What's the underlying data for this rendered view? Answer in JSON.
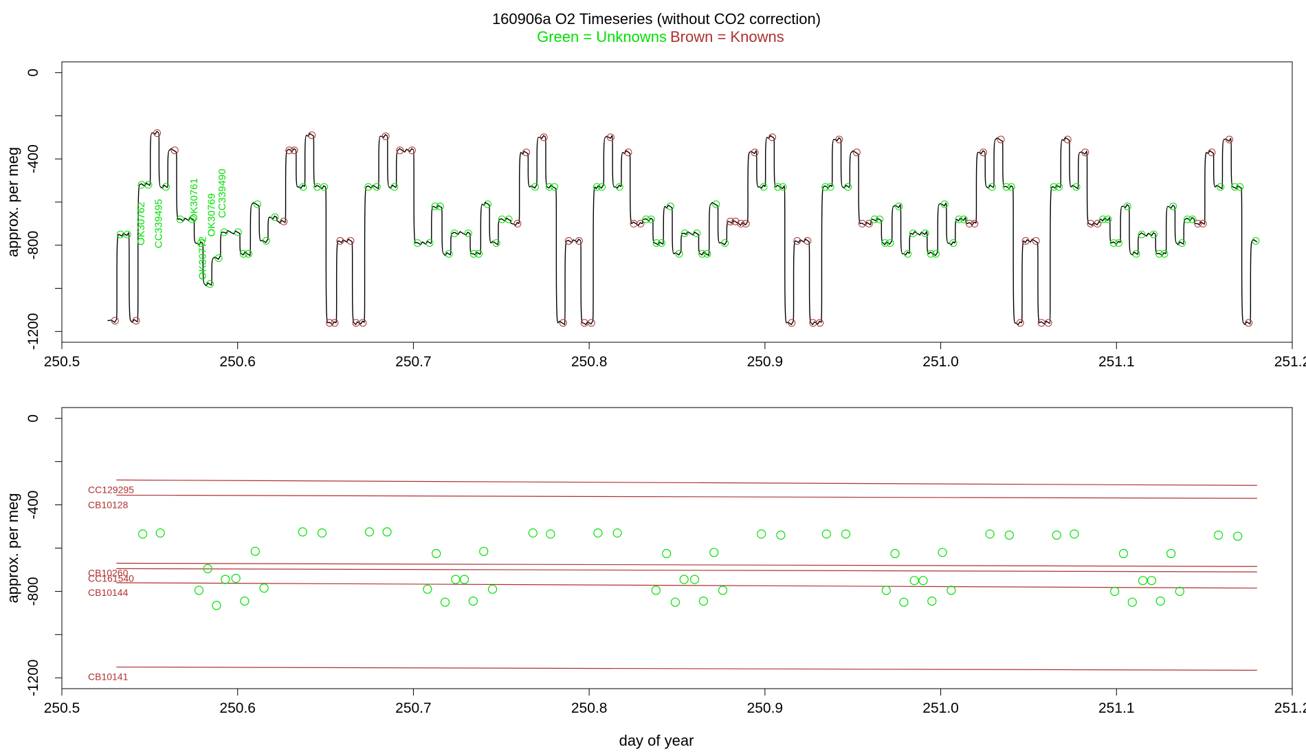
{
  "title": {
    "main": "160906a   O2 Timeseries (without CO2 correction)",
    "legend_unknowns": "Green = Unknowns",
    "legend_knowns": "Brown = Knowns"
  },
  "colors": {
    "unknown": "#00e000",
    "known": "#b03030",
    "trace": "#000000",
    "axis": "#000000"
  },
  "chart_data": [
    {
      "type": "line",
      "panel": "top",
      "ylabel": "approx. per meg",
      "xlim": [
        250.5,
        251.2
      ],
      "ylim": [
        -1250,
        50
      ],
      "x_ticks": [
        "250.5",
        "250.6",
        "250.7",
        "250.8",
        "250.9",
        "251.0",
        "251.1",
        "251.2"
      ],
      "y_ticks": [
        0,
        -400,
        -800,
        -1200
      ],
      "y_tick_labels": [
        "0",
        "-400",
        "-800",
        "-1200"
      ],
      "grid": false,
      "series": [
        {
          "role": "trace",
          "step_levels": [
            {
              "x0": 250.526,
              "x1": 250.531,
              "y": -1150
            },
            {
              "x0": 250.531,
              "x1": 250.538,
              "y": -750
            },
            {
              "x0": 250.538,
              "x1": 250.543,
              "y": -1150
            },
            {
              "x0": 250.543,
              "x1": 250.55,
              "y": -520
            },
            {
              "x0": 250.55,
              "x1": 250.555,
              "y": -280
            },
            {
              "x0": 250.555,
              "x1": 250.56,
              "y": -530
            },
            {
              "x0": 250.56,
              "x1": 250.565,
              "y": -360
            },
            {
              "x0": 250.565,
              "x1": 250.575,
              "y": -680
            },
            {
              "x0": 250.575,
              "x1": 250.58,
              "y": -790
            },
            {
              "x0": 250.58,
              "x1": 250.585,
              "y": -980
            },
            {
              "x0": 250.585,
              "x1": 250.59,
              "y": -860
            },
            {
              "x0": 250.59,
              "x1": 250.601,
              "y": -740
            },
            {
              "x0": 250.601,
              "x1": 250.607,
              "y": -840
            },
            {
              "x0": 250.607,
              "x1": 250.612,
              "y": -610
            },
            {
              "x0": 250.612,
              "x1": 250.617,
              "y": -780
            },
            {
              "x0": 250.617,
              "x1": 250.622,
              "y": -670
            },
            {
              "x0": 250.622,
              "x1": 250.627,
              "y": -690
            },
            {
              "x0": 250.627,
              "x1": 250.633,
              "y": -360
            },
            {
              "x0": 250.633,
              "x1": 250.638,
              "y": -530
            },
            {
              "x0": 250.638,
              "x1": 250.643,
              "y": -290
            },
            {
              "x0": 250.643,
              "x1": 250.65,
              "y": -530
            },
            {
              "x0": 250.65,
              "x1": 250.656,
              "y": -1160
            },
            {
              "x0": 250.656,
              "x1": 250.665,
              "y": -780
            },
            {
              "x0": 250.665,
              "x1": 250.672,
              "y": -1160
            },
            {
              "x0": 250.672,
              "x1": 250.68,
              "y": -530
            },
            {
              "x0": 250.68,
              "x1": 250.685,
              "y": -295
            },
            {
              "x0": 250.685,
              "x1": 250.69,
              "y": -530
            },
            {
              "x0": 250.69,
              "x1": 250.7,
              "y": -360
            },
            {
              "x0": 250.7,
              "x1": 250.71,
              "y": -790
            },
            {
              "x0": 250.71,
              "x1": 250.716,
              "y": -620
            },
            {
              "x0": 250.716,
              "x1": 250.721,
              "y": -840
            },
            {
              "x0": 250.721,
              "x1": 250.732,
              "y": -745
            },
            {
              "x0": 250.732,
              "x1": 250.738,
              "y": -840
            },
            {
              "x0": 250.738,
              "x1": 250.743,
              "y": -610
            },
            {
              "x0": 250.743,
              "x1": 250.748,
              "y": -790
            },
            {
              "x0": 250.748,
              "x1": 250.755,
              "y": -680
            },
            {
              "x0": 250.755,
              "x1": 250.76,
              "y": -700
            },
            {
              "x0": 250.76,
              "x1": 250.765,
              "y": -370
            },
            {
              "x0": 250.765,
              "x1": 250.77,
              "y": -530
            },
            {
              "x0": 250.77,
              "x1": 250.775,
              "y": -300
            },
            {
              "x0": 250.775,
              "x1": 250.781,
              "y": -530
            },
            {
              "x0": 250.781,
              "x1": 250.786,
              "y": -1160
            },
            {
              "x0": 250.786,
              "x1": 250.795,
              "y": -780
            },
            {
              "x0": 250.795,
              "x1": 250.802,
              "y": -1160
            },
            {
              "x0": 250.802,
              "x1": 250.808,
              "y": -530
            },
            {
              "x0": 250.808,
              "x1": 250.813,
              "y": -300
            },
            {
              "x0": 250.813,
              "x1": 250.818,
              "y": -530
            },
            {
              "x0": 250.818,
              "x1": 250.823,
              "y": -370
            },
            {
              "x0": 250.823,
              "x1": 250.83,
              "y": -700
            },
            {
              "x0": 250.83,
              "x1": 250.836,
              "y": -680
            },
            {
              "x0": 250.836,
              "x1": 250.842,
              "y": -790
            },
            {
              "x0": 250.842,
              "x1": 250.847,
              "y": -620
            },
            {
              "x0": 250.847,
              "x1": 250.852,
              "y": -840
            },
            {
              "x0": 250.852,
              "x1": 250.862,
              "y": -745
            },
            {
              "x0": 250.862,
              "x1": 250.868,
              "y": -840
            },
            {
              "x0": 250.868,
              "x1": 250.873,
              "y": -610
            },
            {
              "x0": 250.873,
              "x1": 250.878,
              "y": -790
            },
            {
              "x0": 250.878,
              "x1": 250.884,
              "y": -690
            },
            {
              "x0": 250.884,
              "x1": 250.89,
              "y": -700
            },
            {
              "x0": 250.89,
              "x1": 250.895,
              "y": -370
            },
            {
              "x0": 250.895,
              "x1": 250.9,
              "y": -530
            },
            {
              "x0": 250.9,
              "x1": 250.905,
              "y": -300
            },
            {
              "x0": 250.905,
              "x1": 250.911,
              "y": -530
            },
            {
              "x0": 250.911,
              "x1": 250.916,
              "y": -1160
            },
            {
              "x0": 250.916,
              "x1": 250.925,
              "y": -780
            },
            {
              "x0": 250.925,
              "x1": 250.932,
              "y": -1160
            },
            {
              "x0": 250.932,
              "x1": 250.938,
              "y": -530
            },
            {
              "x0": 250.938,
              "x1": 250.943,
              "y": -310
            },
            {
              "x0": 250.943,
              "x1": 250.948,
              "y": -530
            },
            {
              "x0": 250.948,
              "x1": 250.953,
              "y": -370
            },
            {
              "x0": 250.953,
              "x1": 250.96,
              "y": -700
            },
            {
              "x0": 250.96,
              "x1": 250.966,
              "y": -680
            },
            {
              "x0": 250.966,
              "x1": 250.972,
              "y": -790
            },
            {
              "x0": 250.972,
              "x1": 250.977,
              "y": -620
            },
            {
              "x0": 250.977,
              "x1": 250.982,
              "y": -840
            },
            {
              "x0": 250.982,
              "x1": 250.992,
              "y": -745
            },
            {
              "x0": 250.992,
              "x1": 250.998,
              "y": -840
            },
            {
              "x0": 250.998,
              "x1": 251.003,
              "y": -610
            },
            {
              "x0": 251.003,
              "x1": 251.008,
              "y": -790
            },
            {
              "x0": 251.008,
              "x1": 251.014,
              "y": -680
            },
            {
              "x0": 251.014,
              "x1": 251.02,
              "y": -700
            },
            {
              "x0": 251.02,
              "x1": 251.025,
              "y": -370
            },
            {
              "x0": 251.025,
              "x1": 251.03,
              "y": -530
            },
            {
              "x0": 251.03,
              "x1": 251.035,
              "y": -310
            },
            {
              "x0": 251.035,
              "x1": 251.041,
              "y": -530
            },
            {
              "x0": 251.041,
              "x1": 251.046,
              "y": -1160
            },
            {
              "x0": 251.046,
              "x1": 251.055,
              "y": -780
            },
            {
              "x0": 251.055,
              "x1": 251.062,
              "y": -1160
            },
            {
              "x0": 251.062,
              "x1": 251.068,
              "y": -530
            },
            {
              "x0": 251.068,
              "x1": 251.073,
              "y": -310
            },
            {
              "x0": 251.073,
              "x1": 251.078,
              "y": -530
            },
            {
              "x0": 251.078,
              "x1": 251.083,
              "y": -370
            },
            {
              "x0": 251.083,
              "x1": 251.09,
              "y": -700
            },
            {
              "x0": 251.09,
              "x1": 251.096,
              "y": -680
            },
            {
              "x0": 251.096,
              "x1": 251.102,
              "y": -790
            },
            {
              "x0": 251.102,
              "x1": 251.107,
              "y": -620
            },
            {
              "x0": 251.107,
              "x1": 251.112,
              "y": -840
            },
            {
              "x0": 251.112,
              "x1": 251.122,
              "y": -750
            },
            {
              "x0": 251.122,
              "x1": 251.128,
              "y": -840
            },
            {
              "x0": 251.128,
              "x1": 251.133,
              "y": -620
            },
            {
              "x0": 251.133,
              "x1": 251.138,
              "y": -790
            },
            {
              "x0": 251.138,
              "x1": 251.144,
              "y": -680
            },
            {
              "x0": 251.144,
              "x1": 251.15,
              "y": -700
            },
            {
              "x0": 251.15,
              "x1": 251.155,
              "y": -370
            },
            {
              "x0": 251.155,
              "x1": 251.16,
              "y": -530
            },
            {
              "x0": 251.16,
              "x1": 251.165,
              "y": -310
            },
            {
              "x0": 251.165,
              "x1": 251.171,
              "y": -530
            },
            {
              "x0": 251.171,
              "x1": 251.176,
              "y": -1160
            },
            {
              "x0": 251.176,
              "x1": 251.18,
              "y": -780
            }
          ]
        }
      ],
      "sample_labels": [
        {
          "text": "OK30762",
          "x": 250.547,
          "y": -700
        },
        {
          "text": "CC339495",
          "x": 250.557,
          "y": -700
        },
        {
          "text": "OK30761",
          "x": 250.577,
          "y": -590
        },
        {
          "text": "OK30772",
          "x": 250.582,
          "y": -860
        },
        {
          "text": "OK30769",
          "x": 250.587,
          "y": -660
        },
        {
          "text": "CC339490",
          "x": 250.593,
          "y": -560
        }
      ]
    },
    {
      "type": "scatter",
      "panel": "bottom",
      "xlabel": "day of year",
      "ylabel": "approx. per meg",
      "xlim": [
        250.5,
        251.2
      ],
      "ylim": [
        -1250,
        50
      ],
      "x_ticks": [
        "250.5",
        "250.6",
        "250.7",
        "250.8",
        "250.9",
        "251.0",
        "251.1",
        "251.2"
      ],
      "y_ticks": [
        0,
        -400,
        -800,
        -1200
      ],
      "y_tick_labels": [
        "0",
        "-400",
        "-800",
        "-1200"
      ],
      "grid": false,
      "known_lines": [
        {
          "name": "CC129295",
          "x": [
            250.531,
            251.18
          ],
          "y": [
            -285,
            -310
          ]
        },
        {
          "name": "CB10128",
          "x": [
            250.531,
            251.18
          ],
          "y": [
            -355,
            -370
          ]
        },
        {
          "name": "CB10260",
          "x": [
            250.531,
            251.18
          ],
          "y": [
            -670,
            -685
          ]
        },
        {
          "name": "CC161540",
          "x": [
            250.531,
            251.18
          ],
          "y": [
            -695,
            -710
          ]
        },
        {
          "name": "CB10144",
          "x": [
            250.531,
            251.18
          ],
          "y": [
            -760,
            -785
          ]
        },
        {
          "name": "CB10141",
          "x": [
            250.531,
            251.18
          ],
          "y": [
            -1150,
            -1165
          ]
        }
      ],
      "unknowns": {
        "x": [
          250.546,
          250.556,
          250.578,
          250.583,
          250.588,
          250.593,
          250.599,
          250.604,
          250.61,
          250.615,
          250.637,
          250.648,
          250.675,
          250.685,
          250.708,
          250.713,
          250.718,
          250.724,
          250.729,
          250.734,
          250.74,
          250.745,
          250.768,
          250.778,
          250.805,
          250.816,
          250.838,
          250.844,
          250.849,
          250.854,
          250.86,
          250.865,
          250.871,
          250.876,
          250.898,
          250.909,
          250.935,
          250.946,
          250.969,
          250.974,
          250.979,
          250.985,
          250.99,
          250.995,
          251.001,
          251.006,
          251.028,
          251.039,
          251.066,
          251.076,
          251.099,
          251.104,
          251.109,
          251.115,
          251.12,
          251.125,
          251.131,
          251.136,
          251.158,
          251.169
        ],
        "y": [
          -535,
          -530,
          -795,
          -695,
          -865,
          -745,
          -740,
          -845,
          -615,
          -785,
          -525,
          -530,
          -525,
          -525,
          -790,
          -625,
          -850,
          -745,
          -745,
          -845,
          -615,
          -790,
          -530,
          -535,
          -530,
          -530,
          -795,
          -625,
          -850,
          -745,
          -745,
          -845,
          -620,
          -795,
          -535,
          -540,
          -535,
          -535,
          -795,
          -625,
          -850,
          -750,
          -750,
          -845,
          -620,
          -795,
          -535,
          -540,
          -540,
          -535,
          -800,
          -625,
          -850,
          -750,
          -750,
          -845,
          -625,
          -800,
          -540,
          -545
        ]
      }
    }
  ]
}
